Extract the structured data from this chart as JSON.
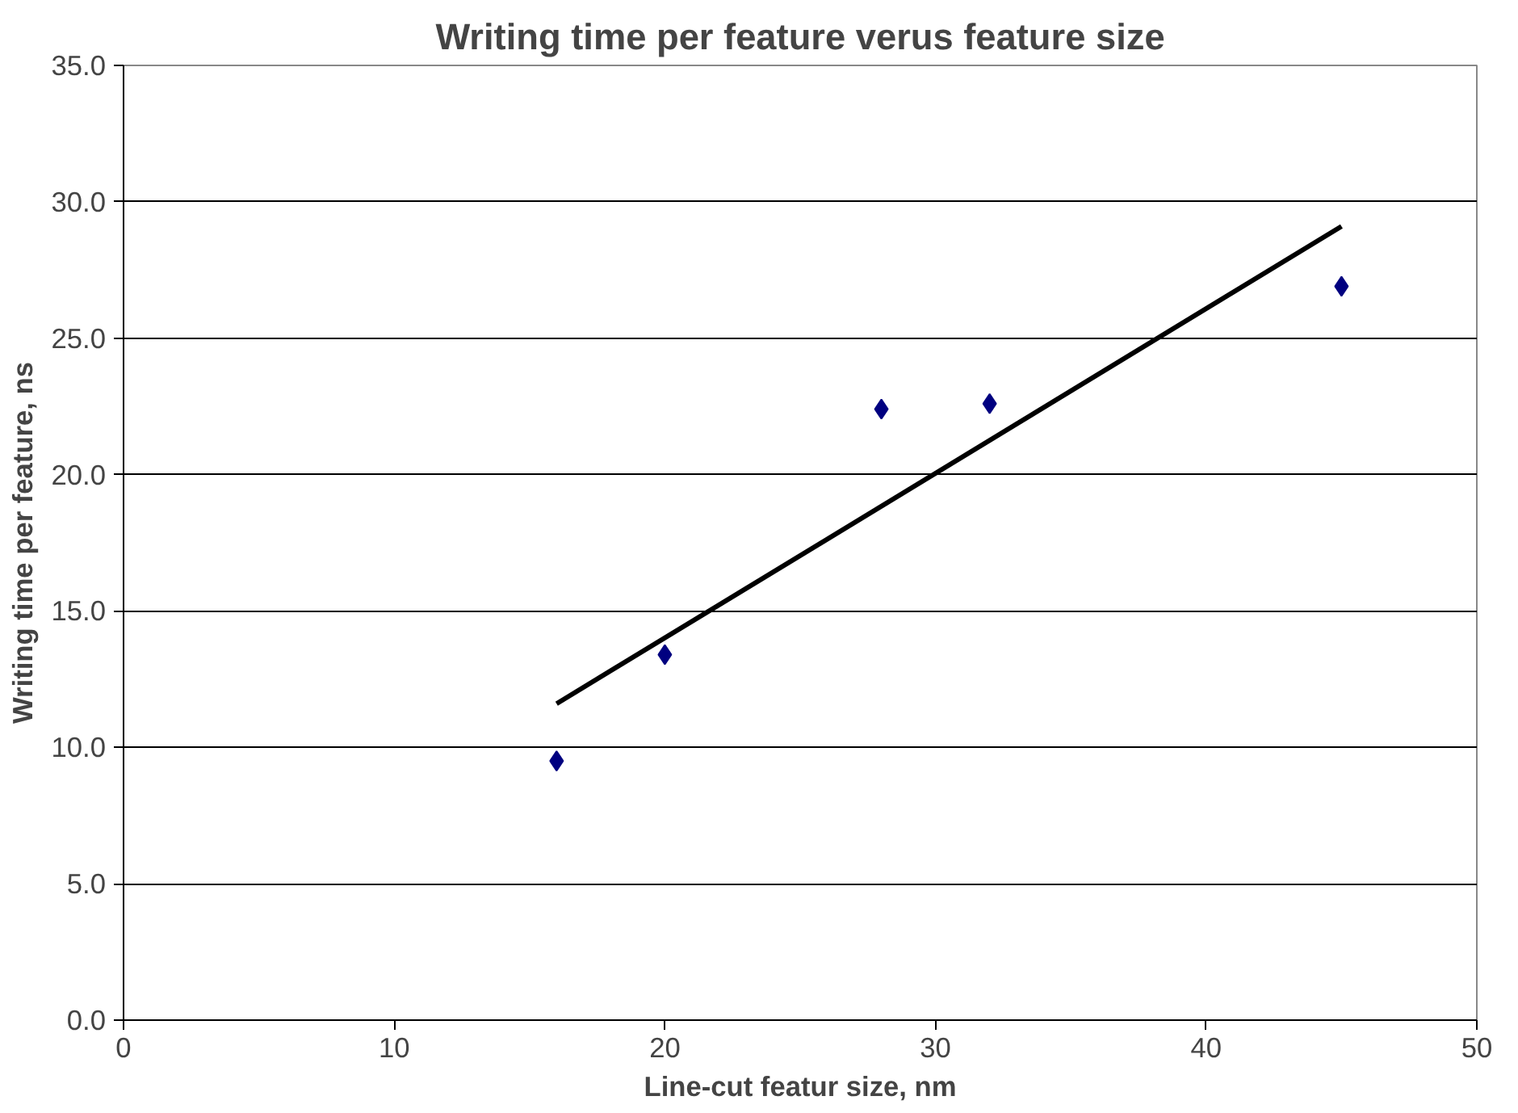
{
  "chart_data": {
    "type": "scatter",
    "title": "Writing time per feature verus feature size",
    "xlabel": "Line-cut featur size, nm",
    "ylabel": "Writing time per feature, ns",
    "series": [
      {
        "color": "#000080",
        "marker": "diamond",
        "x": [
          16,
          20,
          28,
          32,
          45
        ],
        "values": [
          9.5,
          13.4,
          22.4,
          22.6,
          26.9
        ]
      },
      {
        "type": "line",
        "color": "#000000",
        "marker": "none",
        "line_style": "solid",
        "x": [
          16,
          45
        ],
        "values": [
          11.6,
          29.1
        ]
      }
    ],
    "xlim": [
      0,
      50
    ],
    "xticks": [
      0,
      10,
      20,
      30,
      40,
      50
    ],
    "ylim": [
      0,
      35
    ],
    "yticks": [
      {
        "value": 0,
        "label": "0.0"
      },
      {
        "value": 5,
        "label": "5.0"
      },
      {
        "value": 10,
        "label": "10.0"
      },
      {
        "value": 15,
        "label": "15.0"
      },
      {
        "value": 20,
        "label": "20.0"
      },
      {
        "value": 25,
        "label": "25.0"
      },
      {
        "value": 30,
        "label": "30.0"
      },
      {
        "value": 35,
        "label": "35.0"
      }
    ],
    "grid": "y"
  }
}
